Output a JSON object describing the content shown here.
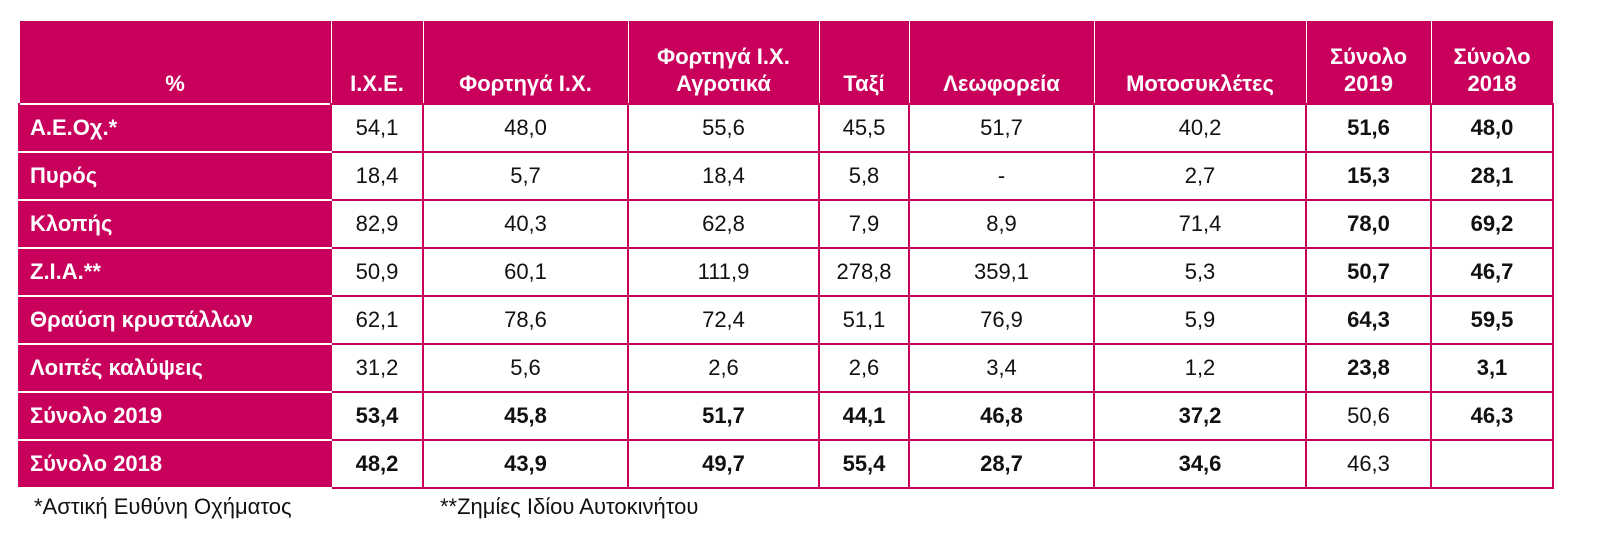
{
  "table": {
    "headers": [
      "%",
      "Ι.Χ.Ε.",
      "Φορτηγά Ι.Χ.",
      "Φορτηγά Ι.Χ. Αγροτικά",
      "Ταξί",
      "Λεωφορεία",
      "Μοτοσυκλέτες",
      "Σύνολο 2019",
      "Σύνολο 2018"
    ],
    "rows": [
      [
        "Α.Ε.Οχ.*",
        "54,1",
        "48,0",
        "55,6",
        "45,5",
        "51,7",
        "40,2",
        "51,6",
        "48,0"
      ],
      [
        "Πυρός",
        "18,4",
        "5,7",
        "18,4",
        "5,8",
        "-",
        "2,7",
        "15,3",
        "28,1"
      ],
      [
        "Κλοπής",
        "82,9",
        "40,3",
        "62,8",
        "7,9",
        "8,9",
        "71,4",
        "78,0",
        "69,2"
      ],
      [
        "Ζ.Ι.Α.**",
        "50,9",
        "60,1",
        "111,9",
        "278,8",
        "359,1",
        "5,3",
        "50,7",
        "46,7"
      ],
      [
        "Θραύση κρυστάλλων",
        "62,1",
        "78,6",
        "72,4",
        "51,1",
        "76,9",
        "5,9",
        "64,3",
        "59,5"
      ],
      [
        "Λοιπές καλύψεις",
        "31,2",
        "5,6",
        "2,6",
        "2,6",
        "3,4",
        "1,2",
        "23,8",
        "3,1"
      ],
      [
        "Σύνολο 2019",
        "53,4",
        "45,8",
        "51,7",
        "44,1",
        "46,8",
        "37,2",
        "50,6",
        "46,3"
      ],
      [
        "Σύνολο 2018",
        "48,2",
        "43,9",
        "49,7",
        "55,4",
        "28,7",
        "34,6",
        "46,3",
        null
      ]
    ]
  },
  "footnotes": [
    "*Αστική Ευθύνη Οχήματος",
    "**Ζημίες Ιδίου Αυτοκινήτου"
  ]
}
